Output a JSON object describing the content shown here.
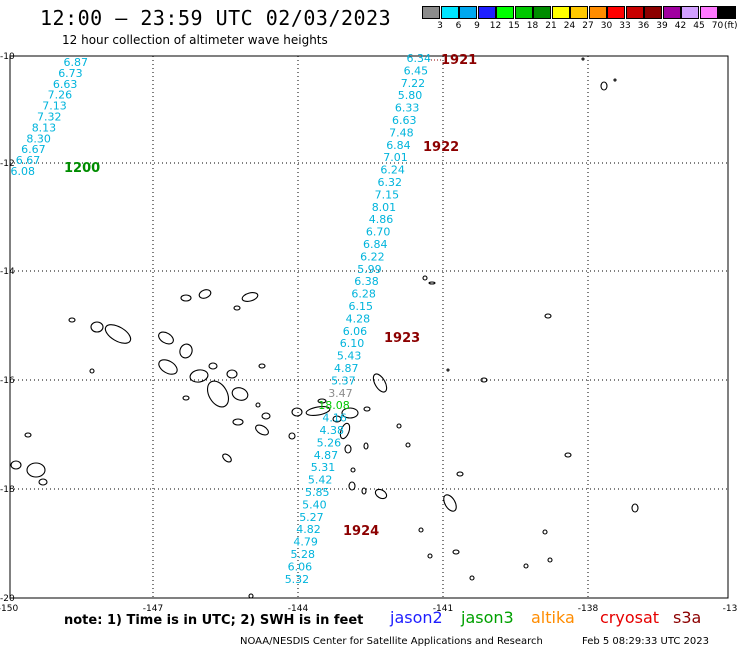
{
  "header": {
    "title": "12:00 – 23:59 UTC 02/03/2023",
    "subtitle": "12 hour collection of altimeter wave heights"
  },
  "legend": {
    "unit": "(ft)",
    "bins": [
      {
        "label": "3",
        "color": "#8c8c8c"
      },
      {
        "label": "6",
        "color": "#00e6ff"
      },
      {
        "label": "9",
        "color": "#00a8f0"
      },
      {
        "label": "12",
        "color": "#1e1eff"
      },
      {
        "label": "15",
        "color": "#00ff00"
      },
      {
        "label": "18",
        "color": "#00c800"
      },
      {
        "label": "21",
        "color": "#008c00"
      },
      {
        "label": "24",
        "color": "#ffff00"
      },
      {
        "label": "27",
        "color": "#ffc800"
      },
      {
        "label": "30",
        "color": "#ff8c00"
      },
      {
        "label": "33",
        "color": "#ff0000"
      },
      {
        "label": "36",
        "color": "#c80000"
      },
      {
        "label": "39",
        "color": "#8c0000"
      },
      {
        "label": "42",
        "color": "#a000a0"
      },
      {
        "label": "45",
        "color": "#d2a0ff"
      },
      {
        "label": "70",
        "color": "#ff78ff"
      },
      {
        "label": "",
        "color": "#000000"
      }
    ]
  },
  "axes": {
    "lon_ticks": [
      "-150",
      "-147",
      "-144",
      "-141",
      "-138",
      "-13"
    ],
    "lat_ticks": [
      "-10",
      "-12",
      "-14",
      "-16",
      "-18",
      "-20"
    ]
  },
  "tracks": [
    {
      "time_label": "1200",
      "time_color": "#008c00",
      "value_color": "#00b4dc",
      "values": [
        "6.87",
        "6.73",
        "6.63",
        "7.26",
        "7.13",
        "7.32",
        "8.13",
        "8.30",
        "6.67",
        "6.67",
        "6.08"
      ]
    },
    {
      "time_label": "1921",
      "time_color": "#8c0000",
      "value_color": "#00b4dc",
      "values": [
        "6.34",
        "6.45",
        "7.22",
        "5.80",
        "6.33",
        "6.63",
        "7.48",
        "6.84",
        "7.01",
        "6.24",
        "6.32",
        "7.15",
        "8.01",
        "4.86",
        "6.70",
        "6.84",
        "6.22",
        "5.99",
        "6.38",
        "6.28",
        "6.15",
        "4.28",
        "6.06",
        "6.10",
        "5.43",
        "4.87",
        "5.37",
        "3.47",
        "18.08",
        "4.16",
        "4.38",
        "5.26",
        "4.87",
        "5.31",
        "5.42",
        "5.85",
        "5.40",
        "5.27",
        "4.82",
        "4.79",
        "5.28",
        "6.06",
        "5.32"
      ]
    },
    {
      "time_label": "1922",
      "time_color": "#8c0000"
    },
    {
      "time_label": "1923",
      "time_color": "#8c0000"
    },
    {
      "time_label": "1924",
      "time_color": "#8c0000"
    }
  ],
  "special_values": {
    "3.47": "#8c8c8c",
    "18.08": "#00c800"
  },
  "footer": {
    "note": "note:  1) Time is in UTC;  2) SWH is in feet",
    "satellites": [
      {
        "name": "jason2",
        "color": "#1e1eff"
      },
      {
        "name": "jason3",
        "color": "#00a000"
      },
      {
        "name": "altika",
        "color": "#ff8c00"
      },
      {
        "name": "cryosat",
        "color": "#e60000"
      },
      {
        "name": "s3a",
        "color": "#8c0000"
      }
    ],
    "credit": "NOAA/NESDIS Center for Satellite Applications and Research",
    "timestamp": "Feb  5 08:29:33 UTC 2023"
  }
}
